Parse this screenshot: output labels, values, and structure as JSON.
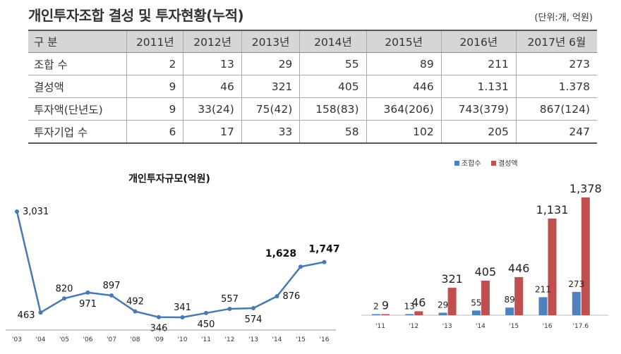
{
  "header": {
    "title": "개인투자조합 결성 및 투자현황(누적)",
    "unit": "(단위:개, 억원)"
  },
  "table": {
    "columns": [
      "구 분",
      "2011년",
      "2012년",
      "2013년",
      "2014년",
      "2015년",
      "2016년",
      "2017년 6월"
    ],
    "rows": [
      [
        "조합 수",
        "2",
        "13",
        "29",
        "55",
        "89",
        "211",
        "273"
      ],
      [
        "결성액",
        "9",
        "46",
        "321",
        "405",
        "446",
        "1.131",
        "1.378"
      ],
      [
        "투자액(단년도)",
        "9",
        "33(24)",
        "75(42)",
        "158(83)",
        "364(206)",
        "743(379)",
        "867(124)"
      ],
      [
        "투자기업 수",
        "6",
        "17",
        "33",
        "58",
        "102",
        "205",
        "247"
      ]
    ]
  },
  "chart_data": [
    {
      "type": "line",
      "title": "개인투자규모(억원)",
      "x": [
        "'03",
        "'04",
        "'05",
        "'06",
        "'07",
        "'08",
        "'09",
        "'10",
        "'11",
        "'12",
        "'13",
        "'14",
        "'15",
        "'16"
      ],
      "series": [
        {
          "values": [
            3031,
            463,
            820,
            971,
            897,
            492,
            346,
            341,
            450,
            557,
            574,
            876,
            1628,
            1747
          ],
          "labels": [
            "3,031",
            "463",
            "820",
            "971",
            "897",
            "492",
            "346",
            "341",
            "450",
            "557",
            "574",
            "876",
            "1,628",
            "1,747"
          ]
        }
      ],
      "bold_labels": [
        12,
        13
      ],
      "color": "#4a78b0",
      "legend": "none"
    },
    {
      "type": "bar",
      "categories": [
        "'11",
        "'12",
        "'13",
        "'14",
        "'15",
        "'16",
        "'17.6"
      ],
      "series": [
        {
          "name": "조합수",
          "values": [
            2,
            13,
            29,
            55,
            89,
            211,
            273
          ],
          "labels": [
            "2",
            "13",
            "29",
            "55",
            "89",
            "211",
            "273"
          ],
          "color": "#4f81bd"
        },
        {
          "name": "결성액",
          "values": [
            9,
            46,
            321,
            405,
            446,
            1131,
            1378
          ],
          "labels": [
            "9",
            "46",
            "321",
            "405",
            "446",
            "1,131",
            "1,378"
          ],
          "color": "#c0504d"
        }
      ],
      "legend": "top"
    }
  ]
}
